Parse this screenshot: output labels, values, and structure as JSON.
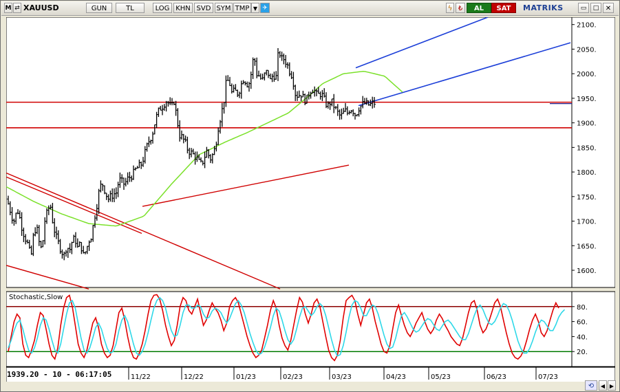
{
  "toolbar": {
    "symbol": "XAUUSD",
    "period": "GUN",
    "currency": "TL",
    "buttons": [
      "LOG",
      "KHN",
      "SVD",
      "SYM",
      "TMP"
    ],
    "buy": "AL",
    "sell": "SAT",
    "brand": "MATRIKS",
    "colors": {
      "buy": "#1a7a1a",
      "sell": "#c00000",
      "brand": "#1c3f94"
    }
  },
  "status": {
    "readout": "1939.20 - 10 - 06:17:05"
  },
  "indicator_title": "Stochastic,Slow",
  "chart_data": [
    {
      "type": "candlestick-ohlc-bars",
      "title": "",
      "xlabel": "",
      "ylabel": "",
      "x_ticks": [
        "11/22",
        "12/22",
        "01/23",
        "02/23",
        "03/23",
        "04/23",
        "05/23",
        "06/23",
        "07/23"
      ],
      "y_ticks": [
        1600,
        1650,
        1700,
        1750,
        1800,
        1850,
        1900,
        1950,
        2000,
        2050,
        2100
      ],
      "ylim": [
        1565,
        2115
      ],
      "price_anchors": [
        [
          0,
          1745
        ],
        [
          4,
          1732
        ],
        [
          8,
          1710
        ],
        [
          12,
          1700
        ],
        [
          16,
          1725
        ],
        [
          20,
          1705
        ],
        [
          24,
          1680
        ],
        [
          28,
          1665
        ],
        [
          32,
          1650
        ],
        [
          36,
          1625
        ],
        [
          40,
          1675
        ],
        [
          44,
          1690
        ],
        [
          48,
          1655
        ],
        [
          52,
          1640
        ],
        [
          56,
          1700
        ],
        [
          60,
          1720
        ],
        [
          64,
          1735
        ],
        [
          68,
          1695
        ],
        [
          72,
          1670
        ],
        [
          76,
          1655
        ],
        [
          80,
          1640
        ],
        [
          84,
          1630
        ],
        [
          88,
          1650
        ],
        [
          92,
          1640
        ],
        [
          96,
          1660
        ],
        [
          100,
          1665
        ],
        [
          104,
          1645
        ],
        [
          108,
          1655
        ],
        [
          112,
          1630
        ],
        [
          116,
          1640
        ],
        [
          120,
          1660
        ],
        [
          124,
          1670
        ],
        [
          128,
          1705
        ],
        [
          132,
          1735
        ],
        [
          136,
          1770
        ],
        [
          140,
          1775
        ],
        [
          144,
          1760
        ],
        [
          148,
          1745
        ],
        [
          152,
          1750
        ],
        [
          156,
          1755
        ],
        [
          160,
          1758
        ],
        [
          164,
          1785
        ],
        [
          168,
          1780
        ],
        [
          172,
          1775
        ],
        [
          176,
          1785
        ],
        [
          180,
          1790
        ],
        [
          184,
          1795
        ],
        [
          188,
          1805
        ],
        [
          192,
          1810
        ],
        [
          196,
          1815
        ],
        [
          200,
          1830
        ],
        [
          204,
          1850
        ],
        [
          208,
          1865
        ],
        [
          212,
          1875
        ],
        [
          216,
          1900
        ],
        [
          220,
          1920
        ],
        [
          224,
          1930
        ],
        [
          228,
          1935
        ],
        [
          232,
          1945
        ],
        [
          236,
          1940
        ],
        [
          240,
          1930
        ],
        [
          244,
          1945
        ],
        [
          248,
          1910
        ],
        [
          252,
          1875
        ],
        [
          256,
          1870
        ],
        [
          260,
          1860
        ],
        [
          264,
          1845
        ],
        [
          268,
          1840
        ],
        [
          272,
          1835
        ],
        [
          276,
          1830
        ],
        [
          280,
          1820
        ],
        [
          284,
          1815
        ],
        [
          288,
          1830
        ],
        [
          292,
          1845
        ],
        [
          296,
          1825
        ],
        [
          300,
          1835
        ],
        [
          304,
          1850
        ],
        [
          308,
          1890
        ],
        [
          312,
          1915
        ],
        [
          316,
          1940
        ],
        [
          320,
          1985
        ],
        [
          324,
          1985
        ],
        [
          328,
          1960
        ],
        [
          332,
          1965
        ],
        [
          336,
          1960
        ],
        [
          340,
          1970
        ],
        [
          344,
          1990
        ],
        [
          348,
          1985
        ],
        [
          352,
          1975
        ],
        [
          356,
          2000
        ],
        [
          360,
          2040
        ],
        [
          364,
          2000
        ],
        [
          368,
          1995
        ],
        [
          372,
          1985
        ],
        [
          376,
          2000
        ],
        [
          380,
          2005
        ],
        [
          384,
          1985
        ],
        [
          388,
          2000
        ],
        [
          392,
          1990
        ],
        [
          396,
          2050
        ],
        [
          400,
          2030
        ],
        [
          404,
          2030
        ],
        [
          408,
          2020
        ],
        [
          412,
          2005
        ],
        [
          416,
          1995
        ],
        [
          420,
          1960
        ],
        [
          424,
          1955
        ],
        [
          428,
          1960
        ],
        [
          432,
          1950
        ],
        [
          436,
          1945
        ],
        [
          440,
          1960
        ],
        [
          444,
          1970
        ],
        [
          448,
          1965
        ],
        [
          452,
          1955
        ],
        [
          456,
          1960
        ],
        [
          460,
          1955
        ],
        [
          464,
          1940
        ],
        [
          468,
          1935
        ],
        [
          472,
          1945
        ],
        [
          476,
          1935
        ],
        [
          480,
          1925
        ],
        [
          484,
          1915
        ],
        [
          488,
          1915
        ],
        [
          492,
          1925
        ],
        [
          496,
          1920
        ],
        [
          500,
          1930
        ],
        [
          504,
          1925
        ],
        [
          508,
          1915
        ],
        [
          512,
          1930
        ],
        [
          516,
          1935
        ],
        [
          520,
          1940
        ],
        [
          524,
          1938
        ],
        [
          528,
          1936
        ],
        [
          532,
          1940
        ]
      ],
      "bars_count": 190,
      "moving_average": {
        "color": "#7be12a",
        "anchors": [
          [
            0,
            1770
          ],
          [
            40,
            1740
          ],
          [
            80,
            1715
          ],
          [
            120,
            1695
          ],
          [
            160,
            1690
          ],
          [
            200,
            1710
          ],
          [
            240,
            1775
          ],
          [
            280,
            1835
          ],
          [
            320,
            1862
          ],
          [
            350,
            1880
          ],
          [
            380,
            1900
          ],
          [
            410,
            1920
          ],
          [
            440,
            1955
          ],
          [
            460,
            1980
          ],
          [
            490,
            2000
          ],
          [
            520,
            2005
          ],
          [
            550,
            1995
          ],
          [
            578,
            1960
          ]
        ]
      },
      "trend_lines": [
        {
          "color": "#d00000",
          "width": 1.4,
          "points": [
            [
              0,
              1790
            ],
            [
              197,
              1675
            ]
          ]
        },
        {
          "color": "#d00000",
          "width": 1.4,
          "points": [
            [
              0,
              1610
            ],
            [
              120,
              1562
            ]
          ]
        },
        {
          "color": "#d00000",
          "width": 1.4,
          "points": [
            [
              0,
              1798
            ],
            [
              398,
              1562
            ]
          ]
        },
        {
          "color": "#d00000",
          "width": 1.4,
          "points": [
            [
              198,
              1730
            ],
            [
              498,
              1814
            ]
          ]
        },
        {
          "color": "#1c3fd8",
          "width": 1.6,
          "points": [
            [
              508,
              2012
            ],
            [
              700,
              2115
            ]
          ]
        },
        {
          "color": "#1c3fd8",
          "width": 1.6,
          "points": [
            [
              512,
              1935
            ],
            [
              820,
              2063
            ]
          ]
        }
      ],
      "horizontal_lines": [
        {
          "color": "#d00000",
          "value": 1942
        },
        {
          "color": "#d00000",
          "value": 1890
        }
      ],
      "last_price_line": {
        "color": "#1c1c8a",
        "value": 1939.2
      }
    },
    {
      "type": "line",
      "title": "Stochastic,Slow",
      "y_ticks": [
        20,
        40,
        60,
        80
      ],
      "ylim": [
        0,
        100
      ],
      "levels": [
        {
          "value": 80,
          "color": "#8b0000"
        },
        {
          "value": 20,
          "color": "#007a00"
        }
      ],
      "series": [
        {
          "name": "",
          "color": "#e00000",
          "values": [
            20,
            40,
            60,
            70,
            65,
            30,
            15,
            12,
            22,
            35,
            55,
            72,
            68,
            50,
            30,
            15,
            10,
            25,
            55,
            78,
            92,
            95,
            80,
            55,
            30,
            18,
            12,
            22,
            40,
            58,
            65,
            52,
            30,
            18,
            12,
            15,
            28,
            50,
            72,
            78,
            62,
            40,
            22,
            12,
            10,
            18,
            30,
            48,
            70,
            88,
            95,
            96,
            90,
            75,
            55,
            40,
            28,
            35,
            55,
            80,
            92,
            88,
            75,
            70,
            80,
            90,
            72,
            55,
            62,
            75,
            85,
            78,
            72,
            62,
            48,
            58,
            80,
            88,
            92,
            85,
            70,
            55,
            40,
            28,
            18,
            12,
            15,
            22,
            38,
            55,
            75,
            88,
            78,
            55,
            38,
            28,
            22,
            35,
            55,
            75,
            92,
            86,
            70,
            58,
            70,
            85,
            90,
            80,
            60,
            40,
            22,
            12,
            8,
            15,
            35,
            65,
            88,
            92,
            95,
            88,
            70,
            55,
            70,
            85,
            90,
            78,
            60,
            45,
            30,
            20,
            18,
            28,
            50,
            72,
            82,
            68,
            55,
            45,
            40,
            48,
            58,
            65,
            72,
            60,
            50,
            44,
            50,
            62,
            70,
            64,
            55,
            48,
            40,
            35,
            30,
            28,
            38,
            55,
            72,
            85,
            88,
            75,
            55,
            45,
            50,
            60,
            72,
            85,
            90,
            80,
            62,
            45,
            30,
            18,
            12,
            10,
            14,
            22,
            35,
            50,
            62,
            70,
            60,
            45,
            40,
            48,
            62,
            75,
            85,
            78
          ]
        },
        {
          "name": "",
          "color": "#2ed8e8",
          "values": [
            25,
            35,
            48,
            58,
            62,
            50,
            35,
            22,
            18,
            25,
            38,
            55,
            65,
            62,
            50,
            35,
            22,
            18,
            30,
            50,
            70,
            85,
            88,
            78,
            58,
            38,
            22,
            18,
            25,
            38,
            52,
            58,
            50,
            36,
            24,
            18,
            20,
            30,
            48,
            62,
            68,
            60,
            45,
            30,
            18,
            15,
            20,
            30,
            45,
            62,
            78,
            88,
            92,
            88,
            78,
            62,
            48,
            40,
            42,
            55,
            72,
            82,
            82,
            78,
            78,
            82,
            80,
            70,
            64,
            66,
            74,
            78,
            76,
            72,
            64,
            58,
            64,
            74,
            84,
            88,
            82,
            72,
            58,
            44,
            32,
            22,
            16,
            18,
            26,
            38,
            52,
            68,
            78,
            74,
            62,
            48,
            36,
            30,
            36,
            50,
            66,
            78,
            80,
            74,
            68,
            72,
            80,
            84,
            80,
            68,
            52,
            36,
            22,
            14,
            16,
            28,
            46,
            66,
            82,
            88,
            86,
            78,
            68,
            68,
            76,
            82,
            80,
            70,
            56,
            42,
            30,
            24,
            26,
            38,
            54,
            68,
            72,
            66,
            58,
            50,
            46,
            48,
            54,
            60,
            64,
            62,
            56,
            50,
            48,
            54,
            60,
            62,
            58,
            52,
            46,
            40,
            36,
            36,
            44,
            56,
            68,
            78,
            82,
            76,
            66,
            58,
            56,
            60,
            68,
            78,
            84,
            82,
            74,
            62,
            48,
            34,
            24,
            18,
            18,
            24,
            34,
            46,
            56,
            62,
            60,
            54,
            48,
            48,
            56,
            66,
            72,
            76
          ]
        }
      ],
      "xlim": [
        0,
        199
      ]
    }
  ]
}
